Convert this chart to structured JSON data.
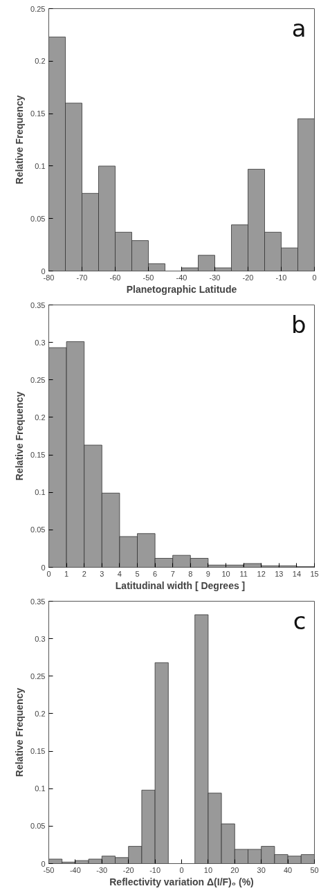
{
  "chart_data": [
    {
      "type": "histogram",
      "xlabel": "Planetographic Latitude",
      "ylabel": "Relative Frequency",
      "annotations": [
        "a"
      ],
      "color": "#999999",
      "bins": [
        -80,
        -75,
        -70,
        -65,
        -60,
        -55,
        -50,
        -45,
        -40,
        -35,
        -30,
        -25,
        -20,
        -15,
        -10,
        -5,
        0
      ],
      "values": [
        0.223,
        0.16,
        0.074,
        0.1,
        0.037,
        0.029,
        0.007,
        0,
        0.003,
        0.015,
        0.003,
        0.044,
        0.097,
        0.037,
        0.022,
        0.145
      ],
      "xlim": [
        -80,
        0
      ],
      "ylim": [
        0,
        0.25
      ],
      "xticks": [
        -80,
        -70,
        -60,
        -50,
        -40,
        -30,
        -20,
        -10,
        0
      ],
      "yticks": [
        0,
        0.05,
        0.1,
        0.15,
        0.2,
        0.25
      ],
      "grid": false
    },
    {
      "type": "histogram",
      "xlabel": "Latitudinal width  [ Degrees ]",
      "ylabel": "Relative Frequency",
      "annotations": [
        "b"
      ],
      "color": "#999999",
      "bins": [
        0,
        1,
        2,
        3,
        4,
        5,
        6,
        7,
        8,
        9,
        10,
        11,
        12,
        13,
        14,
        15
      ],
      "values": [
        0.293,
        0.301,
        0.163,
        0.099,
        0.041,
        0.045,
        0.012,
        0.016,
        0.012,
        0.003,
        0.003,
        0.005,
        0.002,
        0.002,
        0.001
      ],
      "xlim": [
        0,
        15
      ],
      "ylim": [
        0,
        0.35
      ],
      "xticks": [
        0,
        1,
        2,
        3,
        4,
        5,
        6,
        7,
        8,
        9,
        10,
        11,
        12,
        13,
        14,
        15
      ],
      "yticks": [
        0,
        0.05,
        0.1,
        0.15,
        0.2,
        0.25,
        0.3,
        0.35
      ],
      "grid": false
    },
    {
      "type": "histogram",
      "xlabel": "Reflectivity variation Δ(I/F)₀ (%)",
      "ylabel": "Relative Frequency",
      "annotations": [
        "c"
      ],
      "color": "#999999",
      "bins": [
        -50,
        -45,
        -40,
        -35,
        -30,
        -25,
        -20,
        -15,
        -10,
        -5,
        0,
        5,
        10,
        15,
        20,
        25,
        30,
        35,
        40,
        45,
        50
      ],
      "values": [
        0.006,
        0.002,
        0.004,
        0.006,
        0.01,
        0.008,
        0.023,
        0.098,
        0.268,
        0,
        0,
        0.332,
        0.094,
        0.053,
        0.019,
        0.019,
        0.023,
        0.012,
        0.01,
        0.012
      ],
      "xlim": [
        -50,
        50
      ],
      "ylim": [
        0,
        0.35
      ],
      "xticks": [
        -50,
        -40,
        -30,
        -20,
        -10,
        0,
        10,
        20,
        30,
        40,
        50
      ],
      "yticks": [
        0,
        0.05,
        0.1,
        0.15,
        0.2,
        0.25,
        0.3,
        0.35
      ],
      "grid": false
    }
  ]
}
